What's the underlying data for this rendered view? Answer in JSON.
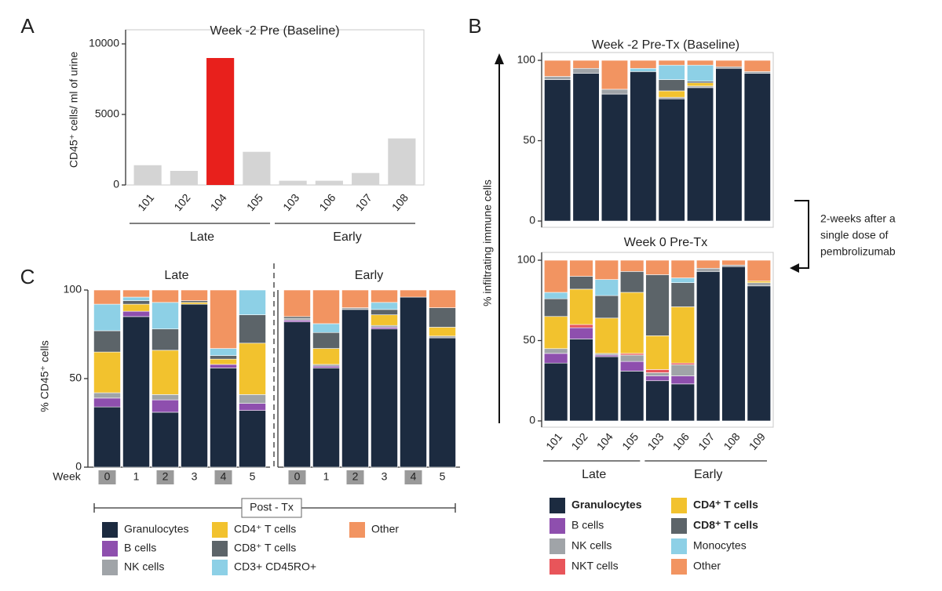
{
  "chart_data": [
    {
      "type": "bar",
      "label": "A",
      "title": "Week -2 Pre (Baseline)",
      "ylabel": "CD45⁺ cells/ ml of urine",
      "categories": [
        "101",
        "102",
        "104",
        "105",
        "103",
        "106",
        "107",
        "108"
      ],
      "values": [
        1400,
        1000,
        9000,
        2350,
        300,
        300,
        850,
        3300
      ],
      "colors": [
        "#d4d4d4",
        "#d4d4d4",
        "#e8201c",
        "#d4d4d4",
        "#d4d4d4",
        "#d4d4d4",
        "#d4d4d4",
        "#d4d4d4"
      ],
      "ylim": [
        0,
        11000
      ],
      "yticks": [
        0,
        5000,
        10000
      ],
      "groups": [
        {
          "name": "Late",
          "members": [
            "101",
            "102",
            "104",
            "105"
          ]
        },
        {
          "name": "Early",
          "members": [
            "103",
            "106",
            "107",
            "108"
          ]
        }
      ]
    },
    {
      "type": "stacked_bar",
      "label": "B",
      "ylabel": "% infiltrating immune cells",
      "annotation": [
        "2-weeks after a",
        "single dose of",
        "pembrolizumab"
      ],
      "ylim": [
        0,
        100
      ],
      "yticks": [
        0,
        50,
        100
      ],
      "panels": [
        {
          "title": "Week -2 Pre-Tx (Baseline)",
          "categories": [
            "101",
            "102",
            "104",
            "105",
            "103",
            "106",
            "107",
            "108"
          ],
          "series": [
            {
              "name": "Granulocytes",
              "color": "#1c2b40",
              "bold": true,
              "values": [
                88,
                92,
                79,
                93,
                76,
                83,
                95,
                92
              ]
            },
            {
              "name": "B cells",
              "color": "#8e4fae",
              "values": [
                0,
                0,
                0,
                0,
                0,
                0,
                0,
                0
              ]
            },
            {
              "name": "NK cells",
              "color": "#a0a4a8",
              "values": [
                2,
                3,
                3,
                0,
                1,
                1,
                1,
                1
              ]
            },
            {
              "name": "NKT cells",
              "color": "#e8555a",
              "values": [
                0,
                0,
                0,
                0,
                0,
                0,
                0,
                0
              ]
            },
            {
              "name": "CD4⁺ T cells",
              "color": "#f2c22e",
              "bold": true,
              "values": [
                0,
                0,
                0,
                0,
                4,
                2,
                0,
                0
              ]
            },
            {
              "name": "CD8⁺ T cells",
              "color": "#5c6469",
              "bold": true,
              "values": [
                0,
                0,
                0,
                0,
                7,
                1,
                0,
                0
              ]
            },
            {
              "name": "Monocytes",
              "color": "#8dd0e6",
              "values": [
                0,
                0,
                0,
                2,
                9,
                10,
                0,
                0
              ]
            },
            {
              "name": "Other",
              "color": "#f29461",
              "values": [
                10,
                5,
                18,
                5,
                3,
                3,
                4,
                7
              ]
            }
          ]
        },
        {
          "title": "Week 0 Pre-Tx",
          "categories": [
            "101",
            "102",
            "104",
            "105",
            "103",
            "106",
            "107",
            "108",
            "109"
          ],
          "groups": [
            {
              "name": "Late",
              "members": [
                "101",
                "102",
                "104",
                "105"
              ]
            },
            {
              "name": "Early",
              "members": [
                "103",
                "106",
                "107",
                "108",
                "109"
              ]
            }
          ],
          "series": [
            {
              "name": "Granulocytes",
              "color": "#1c2b40",
              "values": [
                36,
                51,
                40,
                31,
                25,
                23,
                93,
                96,
                84
              ]
            },
            {
              "name": "B cells",
              "color": "#8e4fae",
              "values": [
                6,
                7,
                1,
                6,
                3,
                5,
                0,
                0,
                0
              ]
            },
            {
              "name": "NK cells",
              "color": "#a0a4a8",
              "values": [
                3,
                0,
                1,
                4,
                2,
                7,
                2,
                1,
                2
              ]
            },
            {
              "name": "NKT cells",
              "color": "#e8555a",
              "values": [
                0,
                2,
                0,
                1,
                2,
                1,
                0,
                0,
                0
              ]
            },
            {
              "name": "CD4⁺ T cells",
              "color": "#f2c22e",
              "values": [
                20,
                22,
                22,
                38,
                21,
                35,
                0,
                0,
                1
              ]
            },
            {
              "name": "CD8⁺ T cells",
              "color": "#5c6469",
              "values": [
                11,
                8,
                14,
                13,
                38,
                15,
                0,
                0,
                0
              ]
            },
            {
              "name": "Monocytes",
              "color": "#8dd0e6",
              "values": [
                4,
                0,
                10,
                0,
                0,
                3,
                0,
                0,
                0
              ]
            },
            {
              "name": "Other",
              "color": "#f29461",
              "values": [
                20,
                10,
                12,
                7,
                9,
                11,
                5,
                3,
                13
              ]
            }
          ]
        }
      ]
    },
    {
      "type": "stacked_bar",
      "label": "C",
      "ylabel": "% CD45⁺ cells",
      "xlabel": "Week",
      "footer": "Post - Tx",
      "ylim": [
        0,
        100
      ],
      "yticks": [
        0,
        50,
        100
      ],
      "highlighted": [
        true,
        false,
        true,
        false,
        true,
        false
      ],
      "panels": [
        {
          "title": "Late",
          "categories": [
            "0",
            "1",
            "2",
            "3",
            "4",
            "5"
          ],
          "series": [
            {
              "name": "Granulocytes",
              "color": "#1c2b40",
              "values": [
                34,
                85,
                31,
                92,
                56,
                32
              ]
            },
            {
              "name": "B cells",
              "color": "#8e4fae",
              "values": [
                5,
                3,
                7,
                0,
                2,
                4
              ]
            },
            {
              "name": "NK cells",
              "color": "#a0a4a8",
              "values": [
                3,
                0,
                3,
                0,
                0,
                5
              ]
            },
            {
              "name": "CD4⁺ T cells",
              "color": "#f2c22e",
              "values": [
                23,
                4,
                25,
                1,
                3,
                29
              ]
            },
            {
              "name": "CD8⁺ T cells",
              "color": "#5c6469",
              "values": [
                12,
                2,
                12,
                1,
                2,
                16
              ]
            },
            {
              "name": "CD3+ CD45RO+",
              "color": "#8dd0e6",
              "values": [
                15,
                2,
                15,
                0,
                4,
                14
              ]
            },
            {
              "name": "Other",
              "color": "#f29461",
              "values": [
                8,
                4,
                7,
                6,
                33,
                0
              ]
            }
          ]
        },
        {
          "title": "Early",
          "categories": [
            "0",
            "1",
            "2",
            "3",
            "4",
            "5"
          ],
          "series": [
            {
              "name": "Granulocytes",
              "color": "#1c2b40",
              "values": [
                82,
                56,
                89,
                78,
                96,
                73
              ]
            },
            {
              "name": "B cells",
              "color": "#8e4fae",
              "values": [
                1,
                1,
                0,
                1,
                0,
                0
              ]
            },
            {
              "name": "NK cells",
              "color": "#a0a4a8",
              "values": [
                1,
                1,
                1,
                1,
                0,
                1
              ]
            },
            {
              "name": "CD4⁺ T cells",
              "color": "#f2c22e",
              "values": [
                0,
                9,
                0,
                6,
                0,
                5
              ]
            },
            {
              "name": "CD8⁺ T cells",
              "color": "#5c6469",
              "values": [
                1,
                9,
                0,
                3,
                0,
                11
              ]
            },
            {
              "name": "CD3+ CD45RO+",
              "color": "#8dd0e6",
              "values": [
                0,
                5,
                0,
                4,
                0,
                0
              ]
            },
            {
              "name": "Other",
              "color": "#f29461",
              "values": [
                15,
                19,
                10,
                7,
                4,
                10
              ]
            }
          ]
        }
      ]
    }
  ]
}
